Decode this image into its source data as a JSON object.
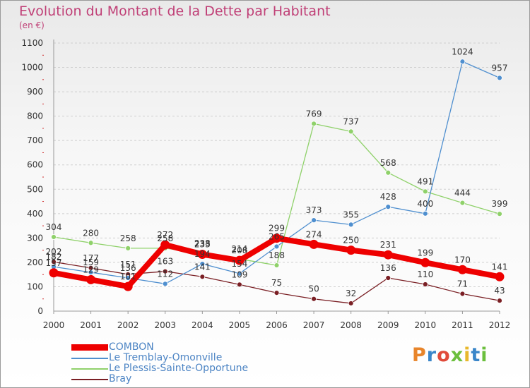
{
  "header": {
    "title": "Evolution du Montant de la Dette par Habitant",
    "subtitle": "(en €)"
  },
  "logo": {
    "text": "Proxiti",
    "colors": [
      "#e8852b",
      "#3a86c9",
      "#e04a3a",
      "#6bbf3d",
      "#e8b82b",
      "#3a86c9",
      "#6bbf3d"
    ]
  },
  "chart_data": {
    "type": "line",
    "x": [
      "2000",
      "2001",
      "2002",
      "2003",
      "2004",
      "2005",
      "2006",
      "2007",
      "2008",
      "2009",
      "2010",
      "2011",
      "2012"
    ],
    "ylim": [
      0,
      1100
    ],
    "yticks": [
      "0",
      "100",
      "200",
      "300",
      "400",
      "500",
      "600",
      "700",
      "800",
      "900",
      "1000",
      "1100"
    ],
    "grid": "horizontal dashed",
    "legend_position": "bottom-left",
    "series": [
      {
        "name": "COMBON",
        "color": "#ee0000",
        "values": [
          157,
          129,
          101,
          272,
          233,
          208,
          299,
          274,
          250,
          231,
          199,
          170,
          141
        ],
        "labels": [
          "157",
          "129",
          "101",
          "272",
          "233",
          "208",
          "299",
          "274",
          "250",
          "231",
          "199",
          "170",
          "141"
        ]
      },
      {
        "name": "Le Tremblay-Omonville",
        "color": "#4f8fcf",
        "values": [
          182,
          159,
          136,
          112,
          194,
          154,
          265,
          373,
          355,
          428,
          400,
          1024,
          957
        ],
        "labels": [
          "182",
          "159",
          "136",
          "112",
          "194",
          "154",
          "265",
          "373",
          "355",
          "428",
          "400",
          "1024",
          "957"
        ]
      },
      {
        "name": "Le Plessis-Sainte-Opportune",
        "color": "#8fd16a",
        "values": [
          304,
          280,
          258,
          258,
          238,
          214,
          188,
          769,
          737,
          568,
          491,
          444,
          399
        ],
        "labels": [
          "304",
          "280",
          "258",
          "258",
          "238",
          "214",
          "188",
          "769",
          "737",
          "568",
          "491",
          "444",
          "399"
        ]
      },
      {
        "name": "Bray",
        "color": "#7a1f24",
        "values": [
          202,
          177,
          151,
          163,
          141,
          109,
          75,
          50,
          32,
          136,
          110,
          71,
          43
        ],
        "labels": [
          "202",
          "177",
          "151",
          "163",
          "141",
          "109",
          "75",
          "50",
          "32",
          "136",
          "110",
          "71",
          "43"
        ]
      }
    ]
  }
}
